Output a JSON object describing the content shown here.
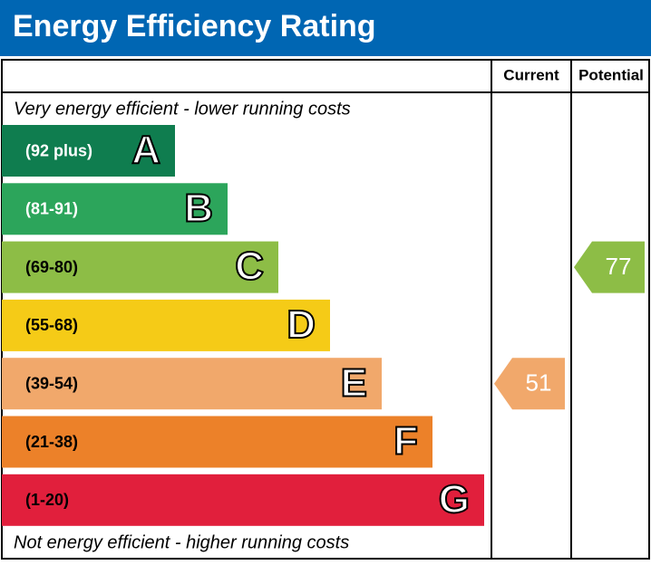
{
  "chart_data": {
    "type": "epc",
    "title": "Energy Efficiency Rating",
    "columns": [
      "Current",
      "Potential"
    ],
    "top_note": "Very energy efficient - lower running costs",
    "bottom_note": "Not energy efficient - higher running costs",
    "bands": [
      {
        "range": "(92 plus)",
        "letter": "A",
        "color": "#0f7d4f",
        "label_color": "#ffffff"
      },
      {
        "range": "(81-91)",
        "letter": "B",
        "color": "#2ca55b",
        "label_color": "#ffffff"
      },
      {
        "range": "(69-80)",
        "letter": "C",
        "color": "#8dbd46",
        "label_color": "#000000"
      },
      {
        "range": "(55-68)",
        "letter": "D",
        "color": "#f5cb17",
        "label_color": "#000000"
      },
      {
        "range": "(39-54)",
        "letter": "E",
        "color": "#f1a86b",
        "label_color": "#000000"
      },
      {
        "range": "(21-38)",
        "letter": "F",
        "color": "#ec8129",
        "label_color": "#000000"
      },
      {
        "range": "(1-20)",
        "letter": "G",
        "color": "#e11f3c",
        "label_color": "#000000"
      }
    ],
    "ratings": [
      51,
      77
    ],
    "header_color": "#0066b3"
  }
}
